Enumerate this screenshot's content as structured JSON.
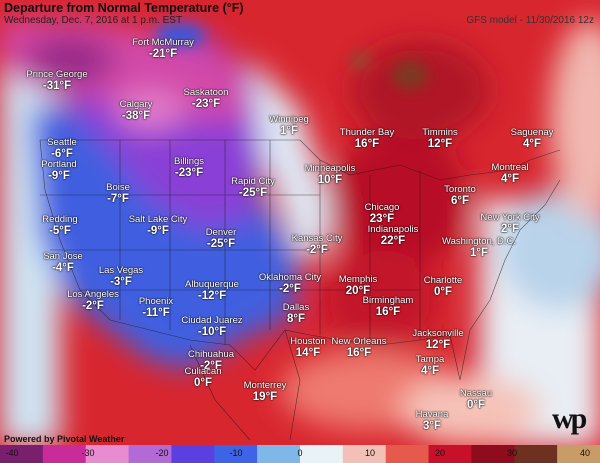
{
  "header": {
    "title": "Departure from Normal Temperature (°F)",
    "date": "Wednesday, Dec. 7, 2016 at 1 p.m. EST",
    "model": "GFS model - 11/30/2016 12z"
  },
  "footer": {
    "powered": "Powered by Pivotal Weather",
    "logo": "wp"
  },
  "scale": {
    "ticks": [
      "-40",
      "-30",
      "-20",
      "-10",
      "0",
      "10",
      "20",
      "30",
      "40"
    ],
    "colors": [
      "#7a1f6e",
      "#c92b9a",
      "#e98bd0",
      "#b36ad6",
      "#5b3fe0",
      "#3e63e6",
      "#7fb7e8",
      "#e9f2f7",
      "#f3c0b7",
      "#e65a4e",
      "#c9102a",
      "#8e0c1d",
      "#6e3020",
      "#c99b66"
    ]
  },
  "cities": [
    {
      "name": "Fort McMurray",
      "val": "-21°F"
    },
    {
      "name": "Prince George",
      "val": "-31°F"
    },
    {
      "name": "Saskatoon",
      "val": "-23°F"
    },
    {
      "name": "Calgary",
      "val": "-38°F"
    },
    {
      "name": "Winnipeg",
      "val": "1°F"
    },
    {
      "name": "Thunder Bay",
      "val": "16°F"
    },
    {
      "name": "Timmins",
      "val": "12°F"
    },
    {
      "name": "Saguenay",
      "val": "4°F"
    },
    {
      "name": "Seattle",
      "val": "-6°F"
    },
    {
      "name": "Portland",
      "val": "-9°F"
    },
    {
      "name": "Billings",
      "val": "-23°F"
    },
    {
      "name": "Boise",
      "val": "-7°F"
    },
    {
      "name": "Rapid City",
      "val": "-25°F"
    },
    {
      "name": "Minneapolis",
      "val": "10°F"
    },
    {
      "name": "Montreal",
      "val": "4°F"
    },
    {
      "name": "Toronto",
      "val": "6°F"
    },
    {
      "name": "Redding",
      "val": "-5°F"
    },
    {
      "name": "Salt Lake City",
      "val": "-9°F"
    },
    {
      "name": "Denver",
      "val": "-25°F"
    },
    {
      "name": "Chicago",
      "val": "23°F"
    },
    {
      "name": "New York City",
      "val": "2°F"
    },
    {
      "name": "Indianapolis",
      "val": "22°F"
    },
    {
      "name": "Kansas City",
      "val": "-2°F"
    },
    {
      "name": "Washington, D.C.",
      "val": "1°F"
    },
    {
      "name": "San Jose",
      "val": "-4°F"
    },
    {
      "name": "Las Vegas",
      "val": "-3°F"
    },
    {
      "name": "Los Angeles",
      "val": "-2°F"
    },
    {
      "name": "Albuquerque",
      "val": "-12°F"
    },
    {
      "name": "Oklahoma City",
      "val": "-2°F"
    },
    {
      "name": "Memphis",
      "val": "20°F"
    },
    {
      "name": "Charlotte",
      "val": "0°F"
    },
    {
      "name": "Phoenix",
      "val": "-11°F"
    },
    {
      "name": "Birmingham",
      "val": "16°F"
    },
    {
      "name": "Dallas",
      "val": "8°F"
    },
    {
      "name": "Ciudad Juarez",
      "val": "-10°F"
    },
    {
      "name": "Jacksonville",
      "val": "12°F"
    },
    {
      "name": "Houston",
      "val": "14°F"
    },
    {
      "name": "New Orleans",
      "val": "16°F"
    },
    {
      "name": "Chihuahua",
      "val": "-2°F"
    },
    {
      "name": "Tampa",
      "val": "4°F"
    },
    {
      "name": "Monterrey",
      "val": "19°F"
    },
    {
      "name": "Nassau",
      "val": "0°F"
    },
    {
      "name": "Culiacan",
      "val": "0°F"
    },
    {
      "name": "Havana",
      "val": "3°F"
    }
  ]
}
